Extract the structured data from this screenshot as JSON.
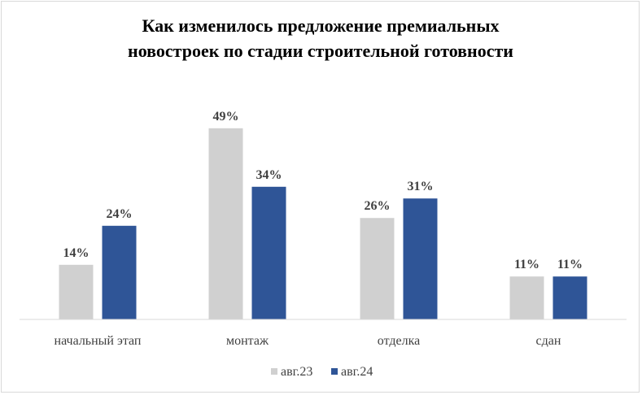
{
  "chart_data": {
    "type": "bar",
    "title_lines": [
      "Как изменилось предложение премиальных",
      "новостроек  по стадии  строительной  готовности"
    ],
    "categories": [
      "начальный этап",
      "монтаж",
      "отделка",
      "сдан"
    ],
    "series": [
      {
        "name": "авг.23",
        "values": [
          14,
          49,
          26,
          11
        ],
        "labels": [
          "14%",
          "49%",
          "26%",
          "11%"
        ],
        "color": "#d0d0d0"
      },
      {
        "name": "авг.24",
        "values": [
          24,
          34,
          31,
          11
        ],
        "labels": [
          "24%",
          "34%",
          "31%",
          "11%"
        ],
        "color": "#2f5597"
      }
    ],
    "ylim": [
      0,
      55
    ],
    "grid": false,
    "legend_position": "bottom",
    "xlabel": "",
    "ylabel": ""
  }
}
